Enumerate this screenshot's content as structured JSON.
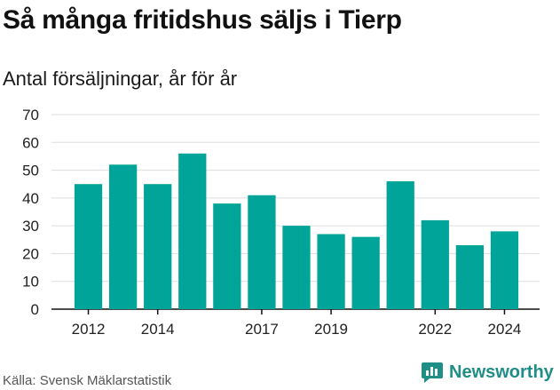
{
  "header": {
    "title": "Så många fritidshus säljs i Tierp",
    "subtitle": "Antal försäljningar, år för år"
  },
  "footer": {
    "source": "Källa: Svensk Mäklarstatistik",
    "brand": "Newsworthy"
  },
  "colors": {
    "bar": "#00a499",
    "grid": "#dddddd",
    "axis": "#111111",
    "brand": "#1e8e86"
  },
  "chart_data": {
    "type": "bar",
    "title": "Så många fritidshus säljs i Tierp",
    "subtitle": "Antal försäljningar, år för år",
    "categories": [
      "2012",
      "2013",
      "2014",
      "2015",
      "2016",
      "2017",
      "2018",
      "2019",
      "2020",
      "2021",
      "2022",
      "2023",
      "2024"
    ],
    "values": [
      45,
      52,
      45,
      56,
      38,
      41,
      30,
      27,
      26,
      46,
      32,
      23,
      28
    ],
    "x_tick_labels": [
      "2012",
      "2014",
      "2017",
      "2019",
      "2022",
      "2024"
    ],
    "y_ticks": [
      0,
      10,
      20,
      30,
      40,
      50,
      60,
      70
    ],
    "ylim": [
      0,
      70
    ],
    "grid": true,
    "legend": "none"
  }
}
